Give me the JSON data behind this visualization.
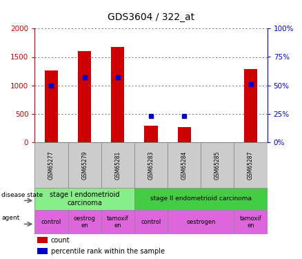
{
  "title": "GDS3604 / 322_at",
  "samples": [
    "GSM65277",
    "GSM65279",
    "GSM65281",
    "GSM65283",
    "GSM65284",
    "GSM65285",
    "GSM65287"
  ],
  "counts": [
    1260,
    1600,
    1680,
    290,
    270,
    0,
    1290
  ],
  "percentile_ranks": [
    50,
    57,
    57,
    23,
    23,
    0,
    51
  ],
  "left_ylim": [
    0,
    2000
  ],
  "right_ylim": [
    0,
    100
  ],
  "left_yticks": [
    0,
    500,
    1000,
    1500,
    2000
  ],
  "right_yticks": [
    0,
    25,
    50,
    75,
    100
  ],
  "bar_color": "#cc0000",
  "dot_color": "#0000cc",
  "disease_state_label1": "stage I endometrioid\ncarcinoma",
  "disease_state_label2": "stage II endometrioid carcinoma",
  "disease_state_color1": "#88ee88",
  "disease_state_color2": "#44cc44",
  "agent_color": "#dd66dd",
  "tick_color_left": "#cc0000",
  "tick_color_right": "#0000cc",
  "bg_color": "#ffffff",
  "bar_width": 0.4,
  "label_fontsize": 7,
  "sample_fontsize": 6,
  "title_fontsize": 10
}
